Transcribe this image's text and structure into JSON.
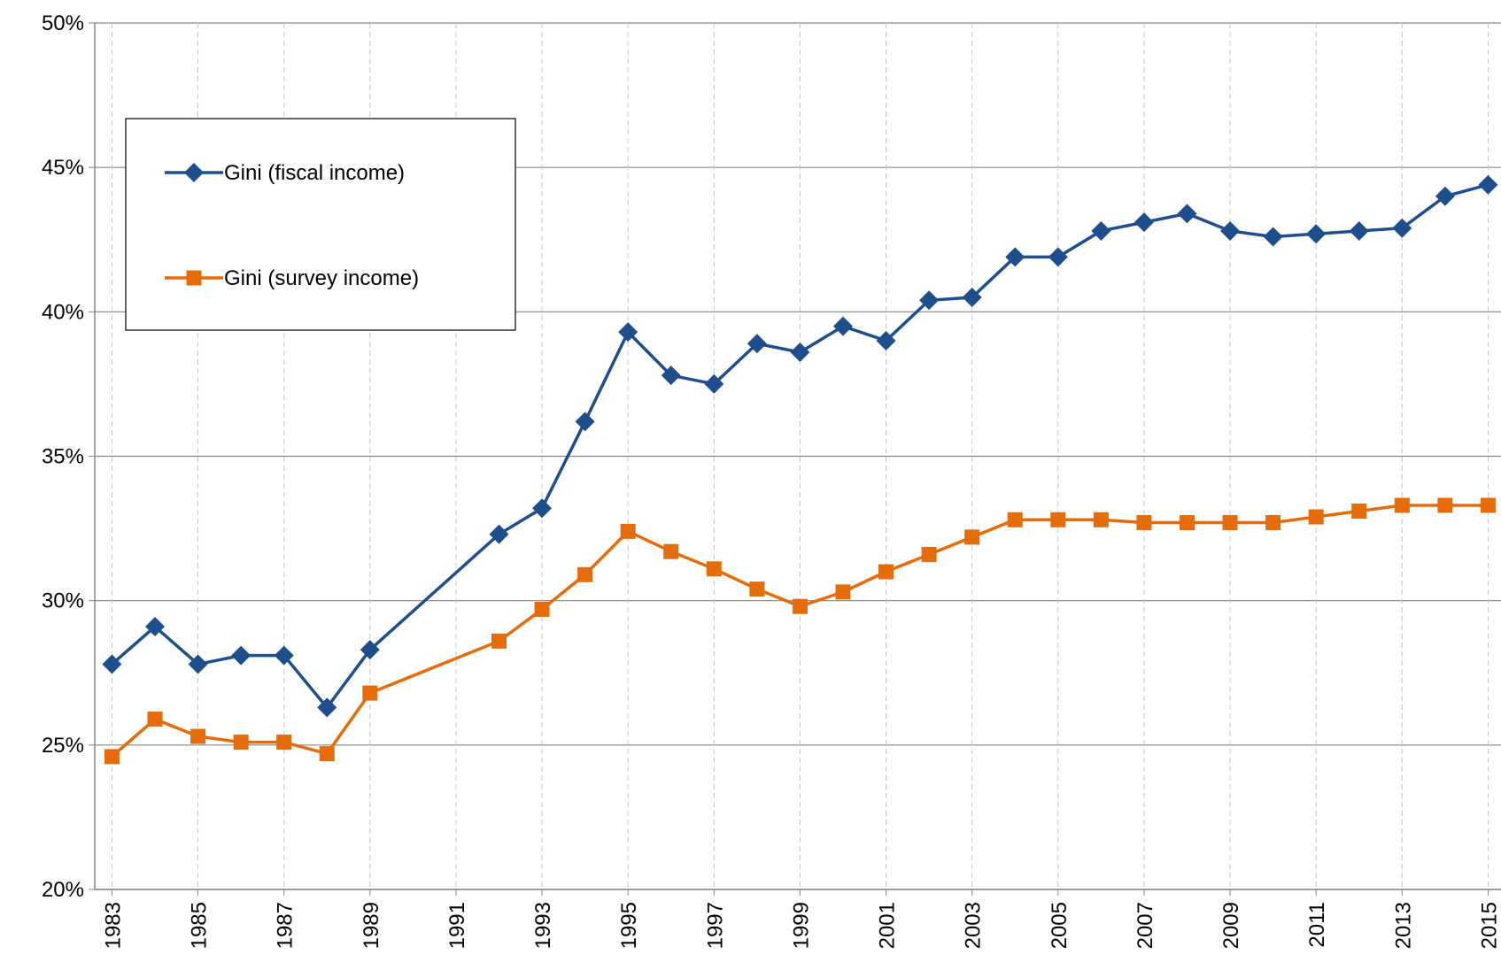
{
  "chart_data": {
    "type": "line",
    "x": [
      1983,
      1984,
      1985,
      1986,
      1987,
      1988,
      1989,
      1992,
      1993,
      1994,
      1995,
      1996,
      1997,
      1998,
      1999,
      2000,
      2001,
      2002,
      2003,
      2004,
      2005,
      2006,
      2007,
      2008,
      2009,
      2010,
      2011,
      2012,
      2013,
      2014,
      2015
    ],
    "series": [
      {
        "name": "Gini (fiscal income)",
        "color": "#1f4e8c",
        "marker": "diamond",
        "values": [
          27.8,
          29.1,
          27.8,
          28.1,
          28.1,
          26.3,
          28.3,
          32.3,
          33.2,
          36.2,
          39.3,
          37.8,
          37.5,
          38.9,
          38.6,
          39.5,
          39.0,
          40.4,
          40.5,
          41.9,
          41.9,
          42.8,
          43.1,
          43.4,
          42.8,
          42.6,
          42.7,
          42.8,
          42.9,
          44.0,
          44.4
        ]
      },
      {
        "name": "Gini (survey income)",
        "color": "#e46c0a",
        "marker": "square",
        "values": [
          24.6,
          25.9,
          25.3,
          25.1,
          25.1,
          24.7,
          26.8,
          28.6,
          29.7,
          30.9,
          32.4,
          31.7,
          31.1,
          30.4,
          29.8,
          30.3,
          31.0,
          31.6,
          32.2,
          32.8,
          32.8,
          32.8,
          32.7,
          32.7,
          32.7,
          32.7,
          32.9,
          33.1,
          33.3,
          33.3,
          33.3
        ]
      }
    ],
    "xlim": [
      1982.6,
      2015.3
    ],
    "xticks": [
      1983,
      1985,
      1987,
      1989,
      1991,
      1993,
      1995,
      1997,
      1999,
      2001,
      2003,
      2005,
      2007,
      2009,
      2011,
      2013,
      2015
    ],
    "ylim": [
      20,
      50
    ],
    "yticks": [
      {
        "value": 20,
        "label": "20%"
      },
      {
        "value": 25,
        "label": "25%"
      },
      {
        "value": 30,
        "label": "30%"
      },
      {
        "value": 35,
        "label": "35%"
      },
      {
        "value": 40,
        "label": "40%"
      },
      {
        "value": 45,
        "label": "45%"
      },
      {
        "value": 50,
        "label": "50%"
      }
    ],
    "grid": true,
    "legend": "upper-left"
  }
}
